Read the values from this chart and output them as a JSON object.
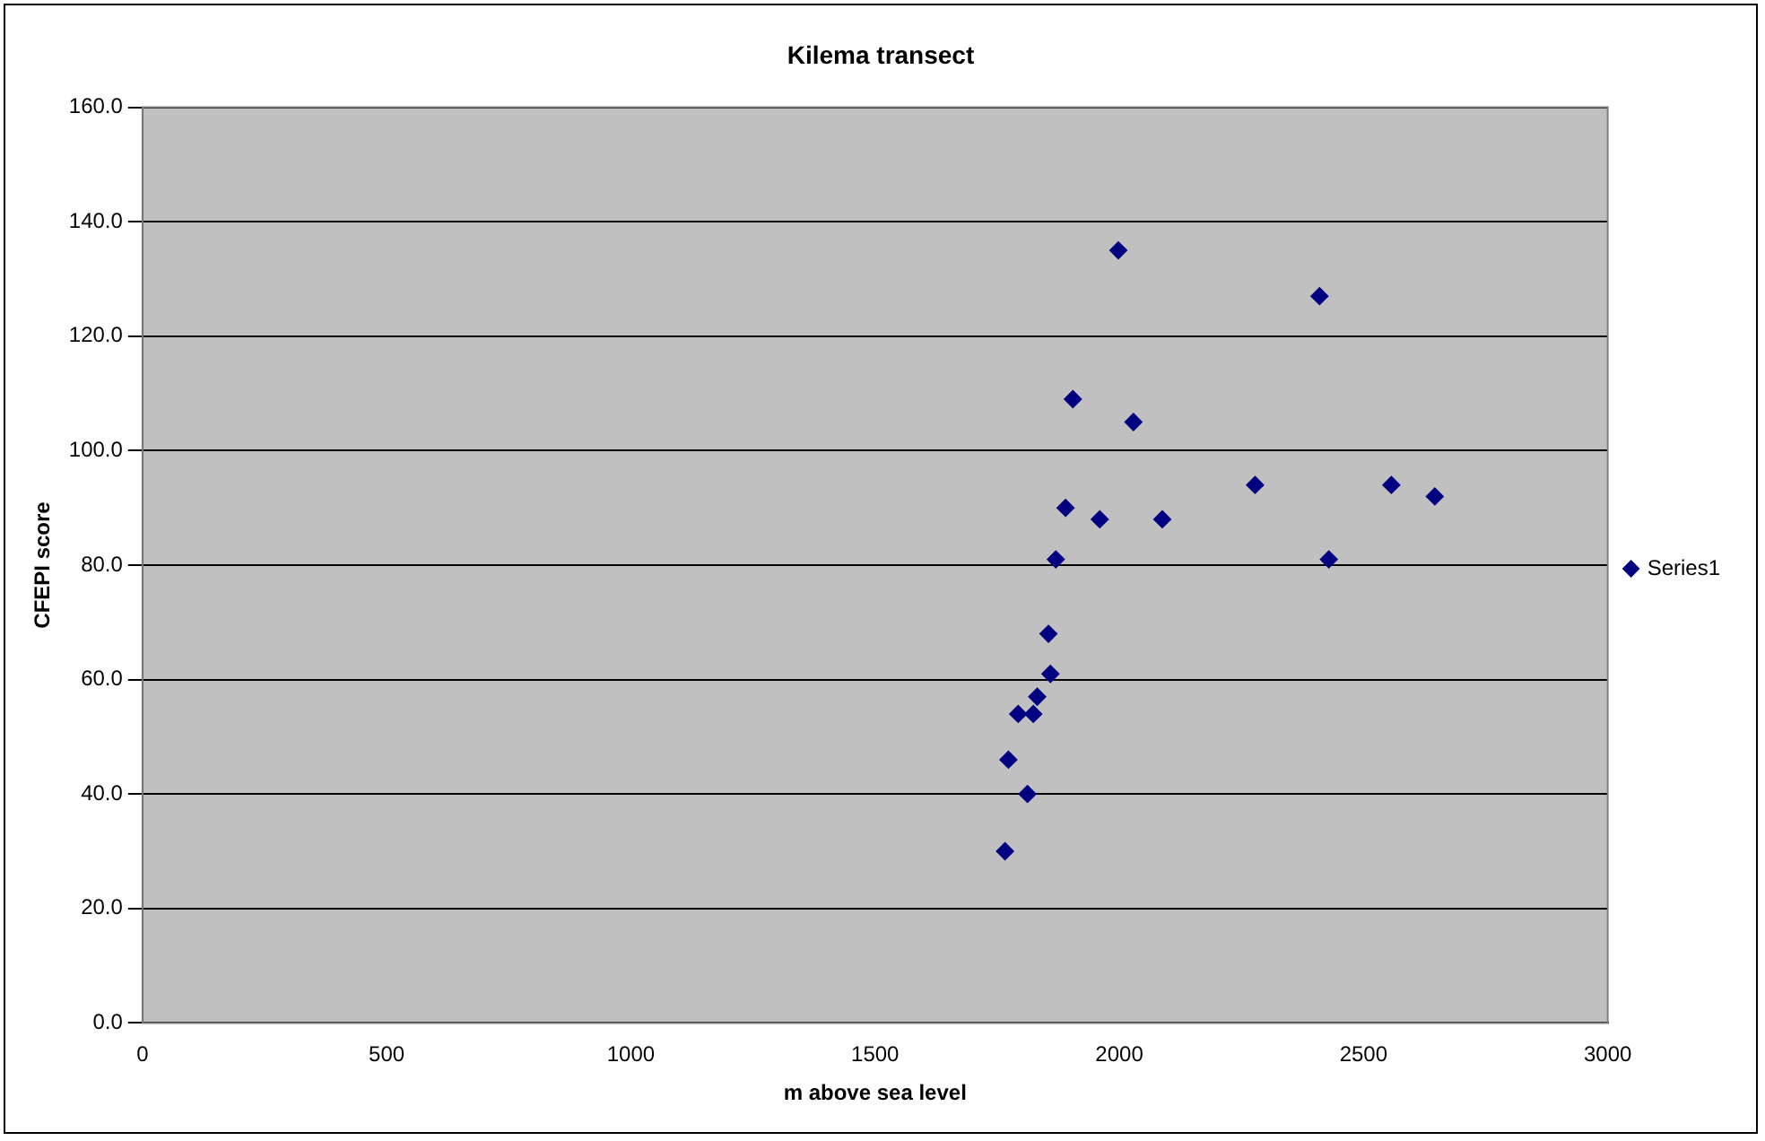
{
  "chart_data": {
    "type": "scatter",
    "title": "Kilema transect",
    "xlabel": "m above sea level",
    "ylabel": "CFEPI score",
    "xlim": [
      0,
      3000
    ],
    "xticks": [
      0,
      500,
      1000,
      1500,
      2000,
      2500,
      3000
    ],
    "ylim": [
      0,
      160
    ],
    "yticks": [
      {
        "value": 0,
        "label": "0.0"
      },
      {
        "value": 20,
        "label": "20.0"
      },
      {
        "value": 40,
        "label": "40.0"
      },
      {
        "value": 60,
        "label": "60.0"
      },
      {
        "value": 80,
        "label": "80.0"
      },
      {
        "value": 100,
        "label": "100.0"
      },
      {
        "value": 120,
        "label": "120.0"
      },
      {
        "value": 140,
        "label": "140.0"
      },
      {
        "value": 160,
        "label": "160.0"
      }
    ],
    "grid": "y",
    "legend": "right",
    "marker": "diamond",
    "series": [
      {
        "name": "Series1",
        "color": "#000080",
        "x": [
          1766,
          1773,
          1793,
          1812,
          1824,
          1832,
          1859,
          1855,
          1870,
          1890,
          1905,
          1960,
          1998,
          2029,
          2088,
          2278,
          2410,
          2429,
          2557,
          2646
        ],
        "values": [
          30,
          46,
          54,
          40,
          54,
          57,
          61,
          68,
          81,
          90,
          109,
          88,
          135,
          105,
          88,
          94,
          127,
          81,
          94,
          92
        ]
      }
    ]
  }
}
